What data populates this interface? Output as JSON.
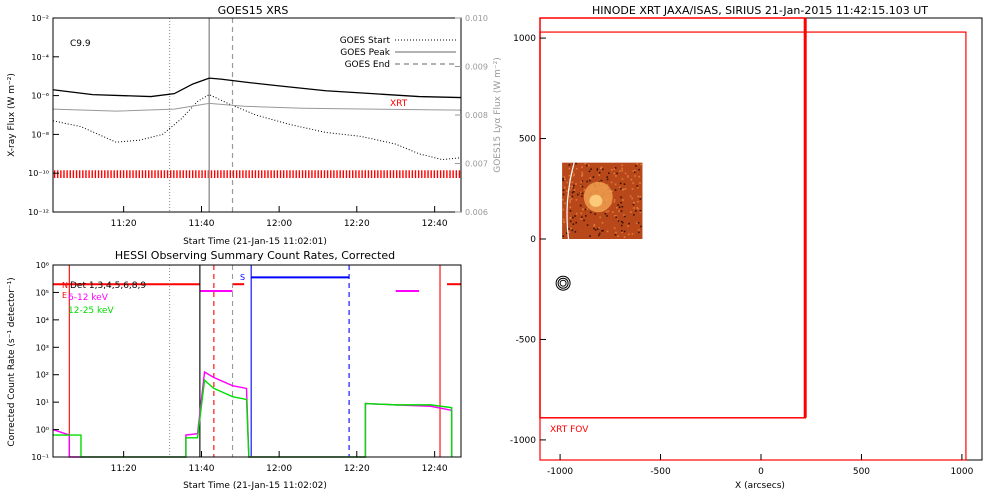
{
  "chart_data": [
    {
      "type": "line",
      "title": "GOES15 XRS",
      "xlabel": "Start Time (21-Jan-15 11:02:01)",
      "ylabel": "X-ray Flux (W m⁻²)",
      "ylabel_right": "GOES15 Lyα Flux (W m⁻²)",
      "flare_class": "C9.9",
      "xrt_label": "XRT",
      "xlim": [
        11.03,
        12.78
      ],
      "x_ticks": [
        11.333,
        11.667,
        12.0,
        12.333,
        12.667
      ],
      "x_ticklabels": [
        "11:20",
        "11:40",
        "12:00",
        "12:20",
        "12:40"
      ],
      "ylim_log": [
        -12,
        -2
      ],
      "y_ticklabels": [
        "10⁻¹²",
        "10⁻¹⁰",
        "10⁻⁸",
        "10⁻⁶",
        "10⁻⁴",
        "10⁻²"
      ],
      "right_ylim": [
        0.006,
        0.01
      ],
      "right_ticklabels": [
        "0.006",
        "0.007",
        "0.008",
        "0.009",
        "0.010"
      ],
      "legend": [
        {
          "label": "GOES Start",
          "style": "dotted",
          "time": 11.53
        },
        {
          "label": "GOES Peak",
          "style": "solid",
          "time": 11.7
        },
        {
          "label": "GOES End",
          "style": "dashed",
          "time": 11.8
        }
      ],
      "series": [
        {
          "key": "long",
          "color": "#000000",
          "style": "solid",
          "x": [
            11.03,
            11.2,
            11.45,
            11.55,
            11.63,
            11.7,
            11.75,
            11.85,
            12.0,
            12.2,
            12.4,
            12.6,
            12.78
          ],
          "log_y": [
            -5.7,
            -5.95,
            -6.05,
            -5.9,
            -5.4,
            -5.1,
            -5.15,
            -5.3,
            -5.5,
            -5.75,
            -5.9,
            -6.05,
            -6.1
          ]
        },
        {
          "key": "short",
          "color": "#000000",
          "style": "dotted",
          "x": [
            11.03,
            11.15,
            11.3,
            11.4,
            11.5,
            11.58,
            11.65,
            11.7,
            11.78,
            11.9,
            12.05,
            12.2,
            12.35,
            12.5,
            12.6,
            12.7,
            12.78
          ],
          "log_y": [
            -7.3,
            -7.6,
            -8.4,
            -8.3,
            -8.0,
            -7.2,
            -6.3,
            -5.95,
            -6.4,
            -7.0,
            -7.5,
            -7.9,
            -8.1,
            -8.5,
            -9.0,
            -9.3,
            -9.2
          ]
        },
        {
          "key": "lya",
          "color": "#999999",
          "style": "solid",
          "x": [
            11.03,
            11.3,
            11.55,
            11.7,
            11.85,
            12.1,
            12.4,
            12.78
          ],
          "right_y": [
            0.00812,
            0.00808,
            0.00812,
            0.00824,
            0.00818,
            0.00814,
            0.00812,
            0.0081
          ]
        }
      ],
      "xrt_marks_color": "#ff0000"
    },
    {
      "type": "line",
      "title": "HESSI Observing Summary Count Rates, Corrected",
      "xlabel": "Start Time (21-Jan-15 11:02:02)",
      "ylabel": "Corrected Count Rate (s⁻¹ detector⁻¹)",
      "xlim": [
        11.03,
        12.78
      ],
      "x_ticks": [
        11.333,
        11.667,
        12.0,
        12.333,
        12.667
      ],
      "x_ticklabels": [
        "11:20",
        "11:40",
        "12:00",
        "12:20",
        "12:40"
      ],
      "ylim_log": [
        -1,
        6
      ],
      "y_ticklabels": [
        "10⁻¹",
        "10⁰",
        "10¹",
        "10²",
        "10³",
        "10⁴",
        "10⁵",
        "10⁶"
      ],
      "legend": [
        {
          "label": "Det 1,3,4,5,6,8,9",
          "color": "#000000"
        },
        {
          "label": "6-12 keV",
          "color": "#ff00ff"
        },
        {
          "label": "12-25 keV",
          "color": "#00dd00"
        }
      ],
      "state_labels": [
        "N",
        "E",
        "S"
      ],
      "red_state_level_log": 5.3,
      "red_state_segments": [
        [
          11.03,
          11.66
        ],
        [
          11.8,
          11.85
        ],
        [
          12.72,
          12.78
        ]
      ],
      "magenta_state_segments": [
        [
          11.66,
          11.8
        ],
        [
          12.5,
          12.6
        ]
      ],
      "blue_state_segment": [
        11.88,
        12.3
      ],
      "blue_state_level_log": 5.55,
      "series": [
        {
          "key": "lo",
          "color": "#ff00ff",
          "x": [
            11.03,
            11.1,
            11.1,
            11.15,
            11.15,
            11.6,
            11.6,
            11.65,
            11.68,
            11.72,
            11.76,
            11.8,
            11.86,
            11.87,
            12.37,
            12.37,
            12.5,
            12.65,
            12.74,
            12.74
          ],
          "log_y": [
            0.0,
            -0.2,
            -1.0,
            -1.0,
            -1.0,
            -1.0,
            -0.2,
            -0.15,
            2.1,
            1.9,
            1.75,
            1.6,
            1.5,
            -1.0,
            -1.0,
            0.95,
            0.9,
            0.85,
            0.7,
            -1.0
          ]
        },
        {
          "key": "hi",
          "color": "#00dd00",
          "x": [
            11.03,
            11.15,
            11.15,
            11.6,
            11.6,
            11.65,
            11.68,
            11.72,
            11.76,
            11.8,
            11.86,
            11.87,
            12.37,
            12.37,
            12.5,
            12.65,
            12.74,
            12.74
          ],
          "log_y": [
            -0.2,
            -0.2,
            -1.0,
            -1.0,
            -0.3,
            -0.3,
            1.8,
            1.5,
            1.35,
            1.2,
            1.1,
            -1.0,
            -1.0,
            0.95,
            0.9,
            0.9,
            0.8,
            -1.0
          ]
        }
      ],
      "vlines": [
        {
          "time": 11.1,
          "color": "#ff0000",
          "style": "solid"
        },
        {
          "time": 11.53,
          "color": "#999999",
          "style": "dotted"
        },
        {
          "time": 11.66,
          "color": "#000000",
          "style": "solid"
        },
        {
          "time": 11.72,
          "color": "#ff0000",
          "style": "dashed"
        },
        {
          "time": 11.8,
          "color": "#999999",
          "style": "dashed"
        },
        {
          "time": 11.88,
          "color": "#0000ff",
          "style": "solid"
        },
        {
          "time": 12.3,
          "color": "#0000ff",
          "style": "dashed"
        },
        {
          "time": 12.69,
          "color": "#ff0000",
          "style": "solid"
        }
      ]
    },
    {
      "type": "scatter",
      "title": "HINODE XRT JAXA/ISAS, SIRIUS 21-Jan-2015 11:42:15.103 UT",
      "xlabel": "X (arcsecs)",
      "xlim": [
        -1100,
        1100
      ],
      "ylim": [
        -1100,
        1100
      ],
      "x_ticks": [
        -1000,
        -500,
        0,
        500,
        1000
      ],
      "x_ticklabels": [
        "-1000",
        "-500",
        "0",
        "500",
        "1000"
      ],
      "y_ticks": [
        -1000,
        -500,
        0,
        500,
        1000
      ],
      "y_ticklabels": [
        "-1000",
        "-500",
        "0",
        "500",
        "1000"
      ],
      "fov_label": "XRT FOV",
      "fov_color": "#ff0000",
      "fov_outer": [
        -1100,
        -1100,
        1020,
        1030
      ],
      "fov_inner": [
        -1100,
        -890,
        220,
        1100
      ],
      "image_extent": [
        -990,
        -590,
        0,
        380
      ],
      "contour_center": [
        -985,
        -220
      ]
    }
  ]
}
